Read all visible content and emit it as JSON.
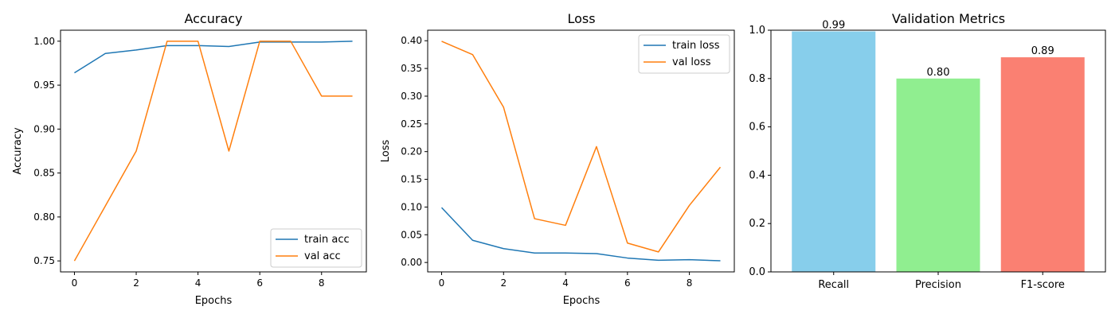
{
  "chart_data": [
    {
      "type": "line",
      "title": "Accuracy",
      "xlabel": "Epochs",
      "ylabel": "Accuracy",
      "x": [
        0,
        1,
        2,
        3,
        4,
        5,
        6,
        7,
        8,
        9
      ],
      "xticks": [
        0,
        2,
        4,
        6,
        8
      ],
      "yticks": [
        0.75,
        0.8,
        0.85,
        0.9,
        0.95,
        1.0
      ],
      "ytick_labels": [
        "0.75",
        "0.80",
        "0.85",
        "0.90",
        "0.95",
        "1.00"
      ],
      "xlim": [
        -0.45,
        9.45
      ],
      "ylim": [
        0.7375,
        1.0125
      ],
      "legend_position": "bottom-right",
      "series": [
        {
          "name": "train acc",
          "color": "#1f77b4",
          "values": [
            0.964,
            0.986,
            0.99,
            0.995,
            0.995,
            0.994,
            0.999,
            0.999,
            0.999,
            1.0
          ]
        },
        {
          "name": "val acc",
          "color": "#ff7f0e",
          "values": [
            0.75,
            0.8125,
            0.875,
            1.0,
            1.0,
            0.875,
            1.0,
            1.0,
            0.9375,
            0.9375
          ]
        }
      ]
    },
    {
      "type": "line",
      "title": "Loss",
      "xlabel": "Epochs",
      "ylabel": "Loss",
      "x": [
        0,
        1,
        2,
        3,
        4,
        5,
        6,
        7,
        8,
        9
      ],
      "xticks": [
        0,
        2,
        4,
        6,
        8
      ],
      "yticks": [
        0.0,
        0.05,
        0.1,
        0.15,
        0.2,
        0.25,
        0.3,
        0.35,
        0.4
      ],
      "ytick_labels": [
        "0.00",
        "0.05",
        "0.10",
        "0.15",
        "0.20",
        "0.25",
        "0.30",
        "0.35",
        "0.40"
      ],
      "xlim": [
        -0.45,
        9.45
      ],
      "ylim": [
        -0.017,
        0.419
      ],
      "legend_position": "top-right",
      "series": [
        {
          "name": "train loss",
          "color": "#1f77b4",
          "values": [
            0.099,
            0.04,
            0.025,
            0.017,
            0.017,
            0.016,
            0.008,
            0.004,
            0.005,
            0.003
          ]
        },
        {
          "name": "val loss",
          "color": "#ff7f0e",
          "values": [
            0.399,
            0.375,
            0.28,
            0.079,
            0.067,
            0.209,
            0.035,
            0.019,
            0.103,
            0.172
          ]
        }
      ]
    },
    {
      "type": "bar",
      "title": "Validation Metrics",
      "categories": [
        "Recall",
        "Precision",
        "F1-score"
      ],
      "values": [
        0.995,
        0.8,
        0.888
      ],
      "data_labels": [
        "0.99",
        "0.80",
        "0.89"
      ],
      "colors": [
        "#87ceeb",
        "#90ee90",
        "#fa8072"
      ],
      "yticks": [
        0.0,
        0.2,
        0.4,
        0.6,
        0.8,
        1.0
      ],
      "ytick_labels": [
        "0.0",
        "0.2",
        "0.4",
        "0.6",
        "0.8",
        "1.0"
      ],
      "ylim": [
        0,
        1.0
      ]
    }
  ]
}
